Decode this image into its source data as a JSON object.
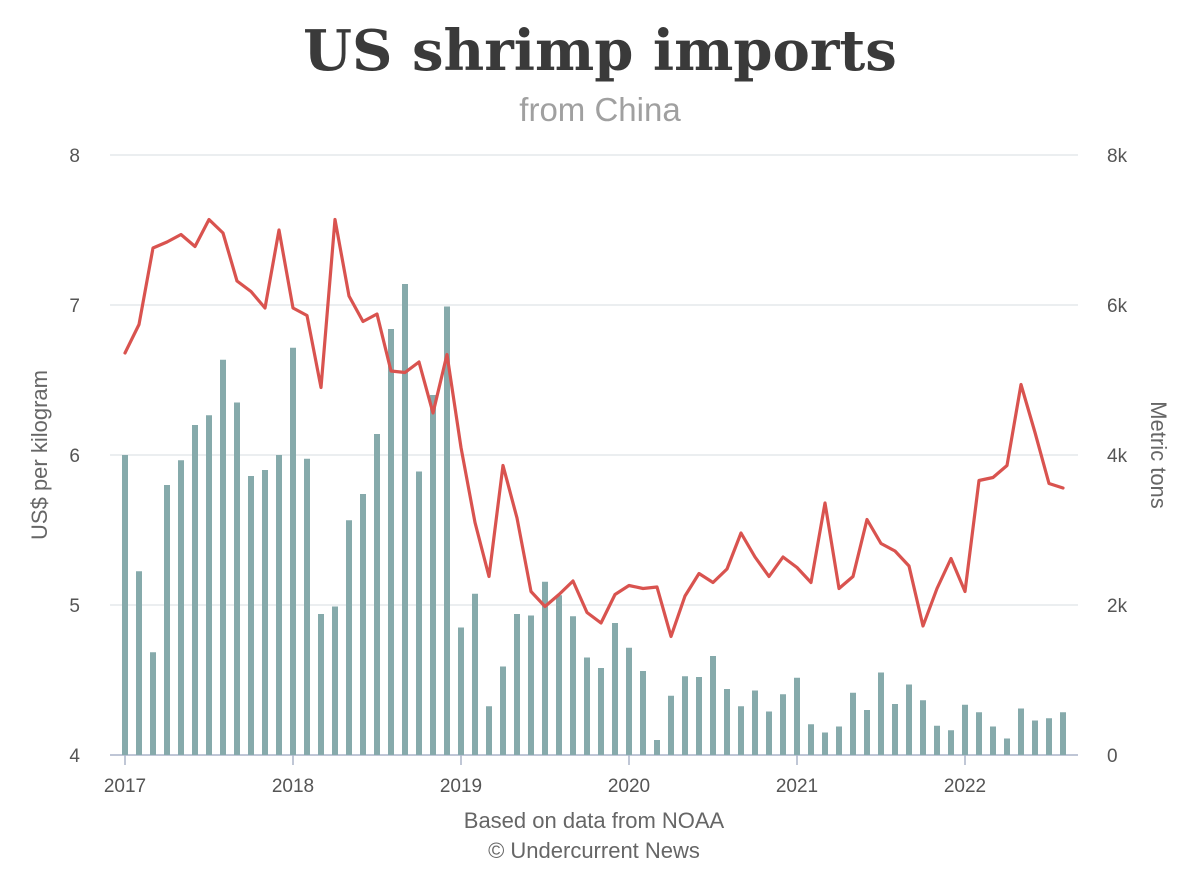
{
  "chart_data": {
    "type": "bar+line",
    "title": "US shrimp imports",
    "subtitle": "from China",
    "ylabel_left": "US$ per kilogram",
    "ylabel_right": "Metric tons",
    "ylim_left": [
      4,
      8
    ],
    "ylim_right": [
      0,
      8000
    ],
    "yticks_left": [
      "4",
      "5",
      "6",
      "7",
      "8"
    ],
    "yticks_right": [
      "0",
      "2k",
      "4k",
      "6k",
      "8k"
    ],
    "xticks": [
      "2017",
      "2018",
      "2019",
      "2020",
      "2021",
      "2022"
    ],
    "x_start": "2017-01",
    "x_end": "2022-08",
    "grid": true,
    "legend": "none",
    "footer": [
      "Based on data from NOAA",
      "© Undercurrent News"
    ],
    "colors": {
      "bars": "#86aaab",
      "line": "#d9534f"
    },
    "series": [
      {
        "kind": "bar",
        "axis": "right",
        "values": [
          4000,
          2450,
          1370,
          3600,
          3930,
          4400,
          4530,
          5270,
          4700,
          3720,
          3800,
          4000,
          5430,
          3950,
          1880,
          1980,
          3130,
          3480,
          4280,
          5680,
          6280,
          3780,
          4800,
          5980,
          1700,
          2150,
          650,
          1180,
          1880,
          1860,
          2310,
          2130,
          1850,
          1300,
          1160,
          1760,
          1430,
          1120,
          200,
          790,
          1050,
          1040,
          1320,
          880,
          650,
          860,
          580,
          810,
          1030,
          410,
          300,
          380,
          830,
          600,
          1100,
          680,
          940,
          730,
          390,
          330,
          670,
          570,
          380,
          220,
          620,
          460,
          490,
          570
        ]
      },
      {
        "kind": "line",
        "axis": "left",
        "values": [
          6.68,
          6.87,
          7.38,
          7.42,
          7.47,
          7.39,
          7.57,
          7.48,
          7.16,
          7.09,
          6.98,
          7.5,
          6.98,
          6.93,
          6.45,
          7.57,
          7.06,
          6.89,
          6.94,
          6.56,
          6.55,
          6.62,
          6.28,
          6.67,
          6.05,
          5.55,
          5.19,
          5.93,
          5.58,
          5.09,
          4.99,
          5.07,
          5.16,
          4.95,
          4.88,
          5.07,
          5.13,
          5.11,
          5.12,
          4.79,
          5.06,
          5.21,
          5.15,
          5.24,
          5.48,
          5.32,
          5.19,
          5.32,
          5.25,
          5.15,
          5.68,
          5.11,
          5.19,
          5.57,
          5.41,
          5.36,
          5.26,
          4.86,
          5.11,
          5.31,
          5.09,
          5.83,
          5.85,
          5.93,
          6.47,
          6.15,
          5.81,
          5.78
        ]
      }
    ]
  }
}
